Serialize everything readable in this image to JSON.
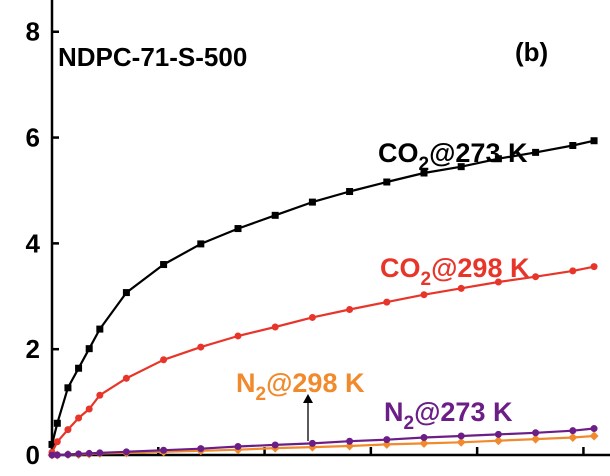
{
  "chart_data": {
    "type": "line",
    "title": "NDPC-71-S-500",
    "panel_label": "(b)",
    "xlabel": "",
    "ylabel": "",
    "xlim": [
      0,
      1.05
    ],
    "ylim": [
      0,
      8.6
    ],
    "yticks": [
      0,
      2,
      4,
      6,
      8
    ],
    "ytick_labels": [
      "0",
      "2",
      "4",
      "6",
      "8"
    ],
    "xticks": [
      0,
      0.2,
      0.4,
      0.6,
      0.8,
      1.0
    ],
    "grid": false,
    "legend": "inline labels",
    "series": [
      {
        "key": "co2_273",
        "name_main": "CO",
        "name_sub": "2",
        "name_tail": "@273 K",
        "color": "#000000",
        "marker": "square",
        "x": [
          0.0,
          0.01,
          0.03,
          0.05,
          0.07,
          0.09,
          0.14,
          0.21,
          0.28,
          0.35,
          0.42,
          0.49,
          0.56,
          0.63,
          0.7,
          0.77,
          0.84,
          0.91,
          0.98,
          1.02
        ],
        "y": [
          0.2,
          0.6,
          1.27,
          1.64,
          2.01,
          2.38,
          3.07,
          3.6,
          3.99,
          4.28,
          4.53,
          4.78,
          4.98,
          5.16,
          5.33,
          5.45,
          5.6,
          5.72,
          5.85,
          5.94
        ]
      },
      {
        "key": "co2_298",
        "name_main": "CO",
        "name_sub": "2",
        "name_tail": "@298 K",
        "color": "#e8352a",
        "marker": "circle",
        "x": [
          0.0,
          0.01,
          0.03,
          0.05,
          0.07,
          0.09,
          0.14,
          0.21,
          0.28,
          0.35,
          0.42,
          0.49,
          0.56,
          0.63,
          0.7,
          0.77,
          0.84,
          0.91,
          0.98,
          1.02
        ],
        "y": [
          0.05,
          0.25,
          0.48,
          0.7,
          0.87,
          1.13,
          1.45,
          1.8,
          2.04,
          2.25,
          2.42,
          2.6,
          2.75,
          2.89,
          3.03,
          3.15,
          3.27,
          3.37,
          3.48,
          3.56
        ]
      },
      {
        "key": "n2_298",
        "name_main": "N",
        "name_sub": "2",
        "name_tail": "@298 K",
        "color": "#f08a2c",
        "marker": "diamond",
        "x": [
          0.0,
          0.01,
          0.03,
          0.05,
          0.07,
          0.09,
          0.14,
          0.21,
          0.28,
          0.35,
          0.42,
          0.49,
          0.56,
          0.63,
          0.7,
          0.77,
          0.84,
          0.91,
          0.98,
          1.02
        ],
        "y": [
          0.0,
          0.0,
          0.01,
          0.01,
          0.02,
          0.03,
          0.04,
          0.06,
          0.08,
          0.1,
          0.13,
          0.15,
          0.17,
          0.2,
          0.22,
          0.24,
          0.27,
          0.3,
          0.33,
          0.36
        ]
      },
      {
        "key": "n2_273",
        "name_main": "N",
        "name_sub": "2",
        "name_tail": "@273 K",
        "color": "#6b1f86",
        "marker": "circle",
        "x": [
          0.0,
          0.01,
          0.03,
          0.05,
          0.07,
          0.09,
          0.14,
          0.21,
          0.28,
          0.35,
          0.42,
          0.49,
          0.56,
          0.63,
          0.7,
          0.77,
          0.84,
          0.91,
          0.98,
          1.02
        ],
        "y": [
          0.0,
          0.0,
          0.01,
          0.02,
          0.03,
          0.04,
          0.06,
          0.09,
          0.12,
          0.16,
          0.19,
          0.22,
          0.26,
          0.29,
          0.33,
          0.36,
          0.39,
          0.42,
          0.46,
          0.5
        ]
      }
    ]
  }
}
